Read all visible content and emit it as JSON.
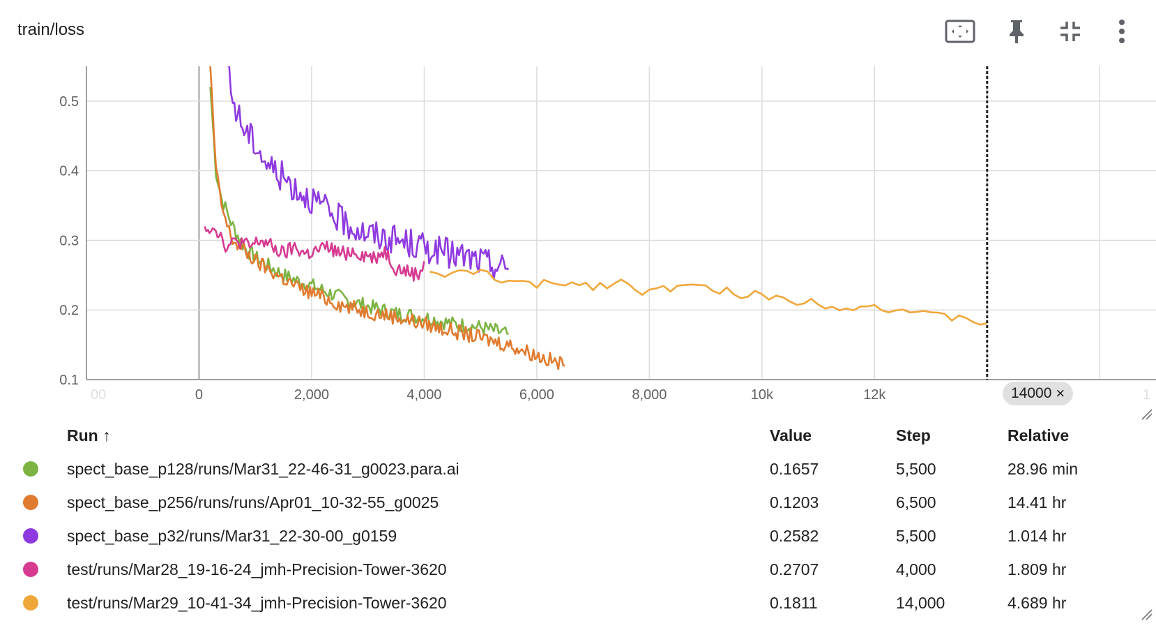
{
  "card": {
    "title": "train/loss"
  },
  "toolbar": {
    "icons": [
      "fit-domain-icon",
      "pin-icon",
      "collapse-icon",
      "more-vert-icon"
    ]
  },
  "chart_data": {
    "type": "line",
    "title": "",
    "xlabel": "",
    "ylabel": "",
    "xlim": [
      -2000,
      17000
    ],
    "ylim": [
      0.1,
      0.55
    ],
    "x_tick_labels": [
      "0",
      "2,000",
      "4,000",
      "6,000",
      "8,000",
      "10k",
      "12k"
    ],
    "x_tick_values": [
      0,
      2000,
      4000,
      6000,
      8000,
      10000,
      12000
    ],
    "x_edge_left_label": "00",
    "x_edge_right_label": "1",
    "y_tick_labels": [
      "0.5",
      "0.4",
      "0.3",
      "0.2",
      "0.1"
    ],
    "y_tick_values": [
      0.5,
      0.4,
      0.3,
      0.2,
      0.1
    ],
    "grid": true,
    "cursor_step": 14000,
    "series": [
      {
        "name": "spect_base_p128/runs/Mar31_22-46-31_g0023.para.ai",
        "color": "#7cb342",
        "x": [
          200,
          300,
          400,
          500,
          600,
          800,
          1000,
          1200,
          1500,
          1800,
          2000,
          2300,
          2600,
          3000,
          3500,
          4000,
          4500,
          5000,
          5500
        ],
        "y": [
          0.52,
          0.4,
          0.36,
          0.34,
          0.32,
          0.29,
          0.275,
          0.265,
          0.25,
          0.24,
          0.235,
          0.225,
          0.215,
          0.205,
          0.195,
          0.19,
          0.18,
          0.175,
          0.165
        ]
      },
      {
        "name": "spect_base_p256/runs/runs/Apr01_10-32-55_g0025",
        "color": "#e07b2f",
        "x": [
          200,
          300,
          400,
          500,
          600,
          800,
          1000,
          1200,
          1500,
          1800,
          2000,
          2300,
          2600,
          3000,
          3500,
          4000,
          4500,
          5000,
          5500,
          6000,
          6500
        ],
        "y": [
          0.55,
          0.4,
          0.35,
          0.32,
          0.3,
          0.285,
          0.27,
          0.26,
          0.245,
          0.23,
          0.225,
          0.215,
          0.205,
          0.198,
          0.19,
          0.18,
          0.17,
          0.16,
          0.15,
          0.135,
          0.12
        ]
      },
      {
        "name": "spect_base_p32/runs/Mar31_22-30-00_g0159",
        "color": "#8e3ae0",
        "x": [
          500,
          600,
          800,
          1000,
          1200,
          1500,
          1800,
          2000,
          2300,
          2600,
          3000,
          3500,
          4000,
          4500,
          5000,
          5500
        ],
        "y": [
          0.55,
          0.5,
          0.46,
          0.44,
          0.41,
          0.39,
          0.37,
          0.36,
          0.34,
          0.325,
          0.31,
          0.3,
          0.29,
          0.28,
          0.27,
          0.258
        ]
      },
      {
        "name": "test/runs/Mar28_19-16-24_jmh-Precision-Tower-3620",
        "color": "#d63a91",
        "x": [
          100,
          300,
          500,
          700,
          900,
          1100,
          1300,
          1500,
          1700,
          1900,
          2100,
          2300,
          2500,
          2700,
          2900,
          3100,
          3300,
          3500,
          3700,
          3900,
          4000
        ],
        "y": [
          0.32,
          0.318,
          0.29,
          0.3,
          0.29,
          0.3,
          0.29,
          0.28,
          0.29,
          0.28,
          0.285,
          0.29,
          0.28,
          0.285,
          0.28,
          0.275,
          0.285,
          0.26,
          0.255,
          0.25,
          0.27
        ]
      },
      {
        "name": "test/runs/Mar29_10-41-34_jmh-Precision-Tower-3620",
        "color": "#f0a73a",
        "x": [
          4100,
          4500,
          5000,
          5500,
          6000,
          6500,
          7000,
          7500,
          8000,
          8500,
          9000,
          9500,
          10000,
          10500,
          11000,
          11500,
          12000,
          12500,
          13000,
          13500,
          14000
        ],
        "y": [
          0.255,
          0.25,
          0.255,
          0.24,
          0.235,
          0.24,
          0.235,
          0.24,
          0.225,
          0.235,
          0.23,
          0.225,
          0.22,
          0.215,
          0.21,
          0.205,
          0.205,
          0.2,
          0.19,
          0.19,
          0.181
        ]
      }
    ]
  },
  "step_chip": {
    "label": "14000",
    "close": "×"
  },
  "table": {
    "headers": {
      "run": "Run ↑",
      "value": "Value",
      "step": "Step",
      "relative": "Relative"
    },
    "rows": [
      {
        "color": "#7cb342",
        "run": "spect_base_p128/runs/Mar31_22-46-31_g0023.para.ai",
        "value": "0.1657",
        "step": "5,500",
        "relative": "28.96 min"
      },
      {
        "color": "#e07b2f",
        "run": "spect_base_p256/runs/runs/Apr01_10-32-55_g0025",
        "value": "0.1203",
        "step": "6,500",
        "relative": "14.41 hr"
      },
      {
        "color": "#8e3ae0",
        "run": "spect_base_p32/runs/Mar31_22-30-00_g0159",
        "value": "0.2582",
        "step": "5,500",
        "relative": "1.014 hr"
      },
      {
        "color": "#d63a91",
        "run": "test/runs/Mar28_19-16-24_jmh-Precision-Tower-3620",
        "value": "0.2707",
        "step": "4,000",
        "relative": "1.809 hr"
      },
      {
        "color": "#f0a73a",
        "run": "test/runs/Mar29_10-41-34_jmh-Precision-Tower-3620",
        "value": "0.1811",
        "step": "14,000",
        "relative": "4.689 hr"
      }
    ]
  }
}
